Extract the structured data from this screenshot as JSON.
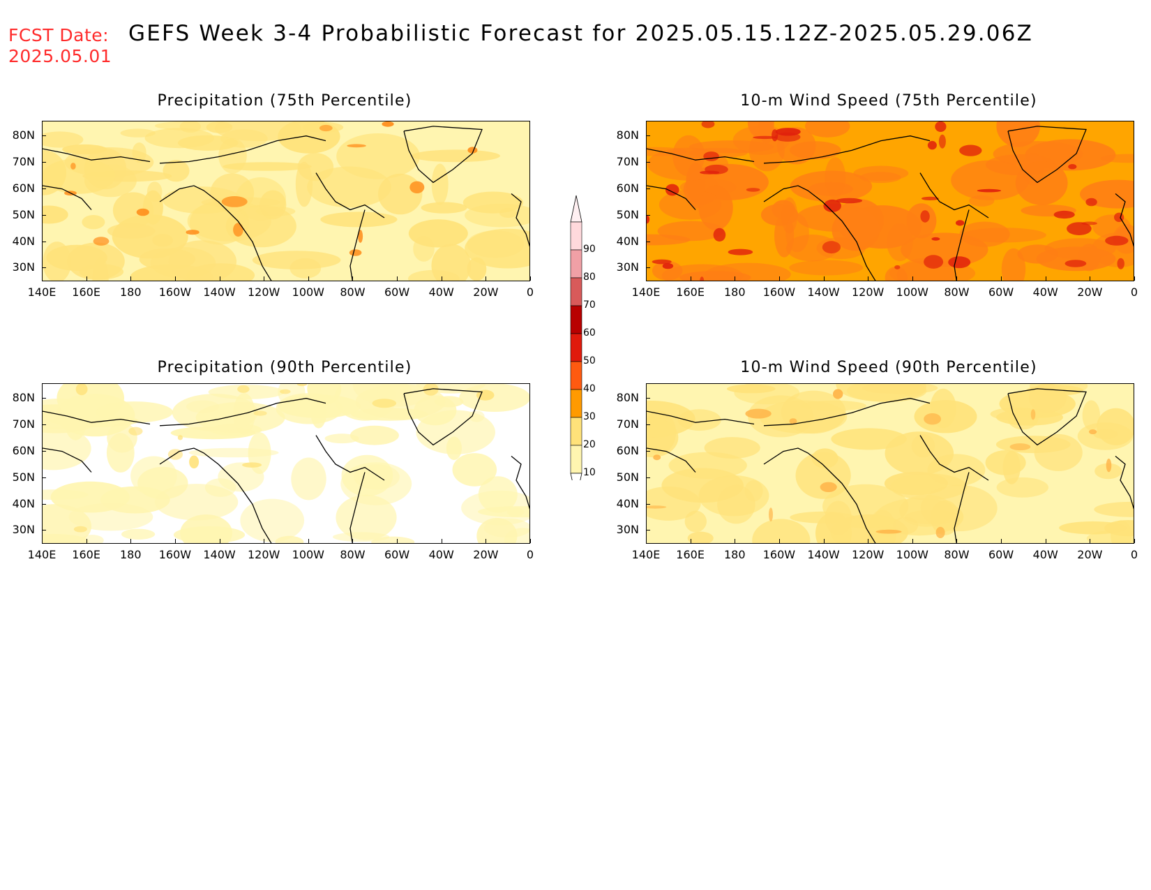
{
  "header": {
    "fcst_label": "FCST Date:",
    "fcst_date": "2025.05.01",
    "title": "GEFS Week 3-4 Probabilistic Forecast for 2025.05.15.12Z-2025.05.29.06Z"
  },
  "panels": [
    {
      "title": "Precipitation (75th Percentile)",
      "base_color": "#fff5b0",
      "patch_color": "#ffe27a",
      "accent": "#ff8c1a"
    },
    {
      "title": "10-m Wind Speed (75th Percentile)",
      "base_color": "#ffa500",
      "patch_color": "#ff7f14",
      "accent": "#e0200c"
    },
    {
      "title": "Precipitation (90th Percentile)",
      "base_color": "#ffffff",
      "patch_color": "#fff5b0",
      "accent": "#ffe27a"
    },
    {
      "title": "10-m Wind Speed (90th Percentile)",
      "base_color": "#fff5b0",
      "patch_color": "#ffe27a",
      "accent": "#ffb347"
    }
  ],
  "lat_labels": [
    "80N",
    "70N",
    "60N",
    "50N",
    "40N",
    "30N"
  ],
  "lon_labels": [
    "140E",
    "160E",
    "180",
    "160W",
    "140W",
    "120W",
    "100W",
    "80W",
    "60W",
    "40W",
    "20W",
    "0"
  ],
  "colorbar": {
    "levels": [
      "90",
      "80",
      "70",
      "60",
      "50",
      "40",
      "30",
      "20",
      "10"
    ],
    "colors": [
      "#ffd9dc",
      "#f0a0a6",
      "#d85a5a",
      "#b80000",
      "#e01a0c",
      "#ff5a10",
      "#ff9a00",
      "#ffe27a",
      "#fff5b0"
    ]
  }
}
